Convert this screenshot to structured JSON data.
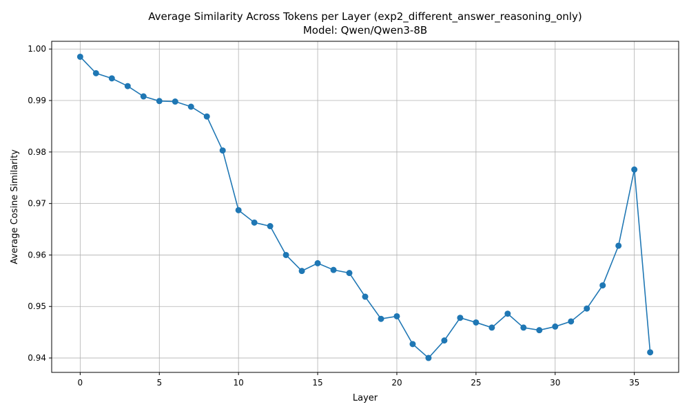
{
  "chart_data": {
    "type": "line",
    "title": "Average Similarity Across Tokens per Layer (exp2_different_answer_reasoning_only)",
    "subtitle": "Model: Qwen/Qwen3-8B",
    "xlabel": "Layer",
    "ylabel": "Average Cosine Similarity",
    "xlim": [
      -1.8,
      37.8
    ],
    "ylim": [
      0.9372,
      1.0015
    ],
    "xticks": [
      0,
      5,
      10,
      15,
      20,
      25,
      30,
      35
    ],
    "yticks": [
      0.94,
      0.95,
      0.96,
      0.97,
      0.98,
      0.99,
      1.0
    ],
    "ytick_labels": [
      "0.94",
      "0.95",
      "0.96",
      "0.97",
      "0.98",
      "0.99",
      "1.00"
    ],
    "grid": true,
    "series_color": "#1f77b4",
    "x": [
      0,
      1,
      2,
      3,
      4,
      5,
      6,
      7,
      8,
      9,
      10,
      11,
      12,
      13,
      14,
      15,
      16,
      17,
      18,
      19,
      20,
      21,
      22,
      23,
      24,
      25,
      26,
      27,
      28,
      29,
      30,
      31,
      32,
      33,
      34,
      35,
      36
    ],
    "y": [
      0.9985,
      0.9953,
      0.9943,
      0.9928,
      0.9908,
      0.9899,
      0.9898,
      0.9888,
      0.9869,
      0.9803,
      0.9687,
      0.9663,
      0.9656,
      0.96,
      0.9569,
      0.9584,
      0.9571,
      0.9565,
      0.9519,
      0.9476,
      0.9481,
      0.9427,
      0.94,
      0.9434,
      0.9478,
      0.9469,
      0.9459,
      0.9486,
      0.9459,
      0.9454,
      0.9461,
      0.9471,
      0.9496,
      0.9541,
      0.9618,
      0.9766,
      0.9411
    ]
  }
}
